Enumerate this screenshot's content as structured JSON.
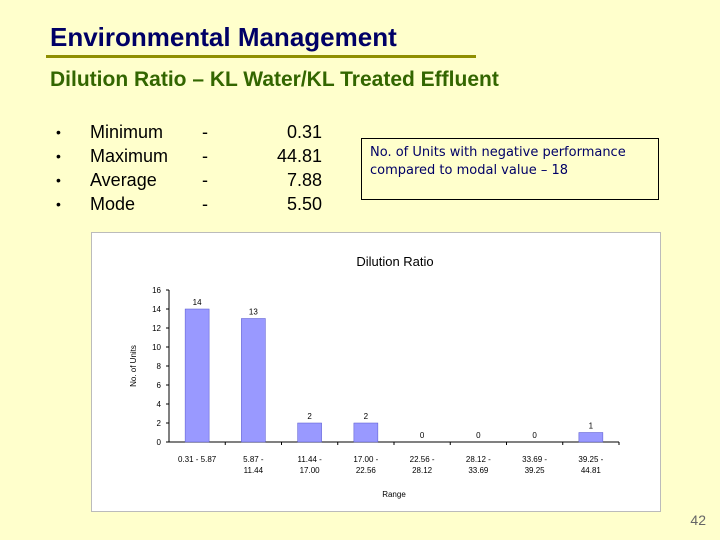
{
  "slide": {
    "title": "Environmental Management",
    "subtitle": "Dilution Ratio – KL Water/KL Treated Effluent",
    "page_number": "42"
  },
  "stats": [
    {
      "bullet": "•",
      "label": "Minimum",
      "dash": "-",
      "value": "0.31"
    },
    {
      "bullet": "•",
      "label": "Maximum",
      "dash": "-",
      "value": "44.81"
    },
    {
      "bullet": "•",
      "label": "Average",
      "dash": "-",
      "value": "7.88"
    },
    {
      "bullet": "•",
      "label": "Mode",
      "dash": "-",
      "value": "5.50"
    }
  ],
  "note": "No. of Units with negative performance compared to modal value – 18",
  "chart_data": {
    "type": "bar",
    "title": "Dilution Ratio",
    "xlabel": "Range",
    "ylabel": "No. of Units",
    "ylim": [
      0,
      16
    ],
    "yticks": [
      0,
      2,
      4,
      6,
      8,
      10,
      12,
      14,
      16
    ],
    "categories": [
      [
        "0.31 - 5.87"
      ],
      [
        "5.87 -",
        "11.44"
      ],
      [
        "11.44 -",
        "17.00"
      ],
      [
        "17.00 -",
        "22.56"
      ],
      [
        "22.56 -",
        "28.12"
      ],
      [
        "28.12 -",
        "33.69"
      ],
      [
        "33.69 -",
        "39.25"
      ],
      [
        "39.25 -",
        "44.81"
      ]
    ],
    "values": [
      14,
      13,
      2,
      2,
      0,
      0,
      0,
      1
    ],
    "bar_color": "#9999ff",
    "grid": false
  }
}
